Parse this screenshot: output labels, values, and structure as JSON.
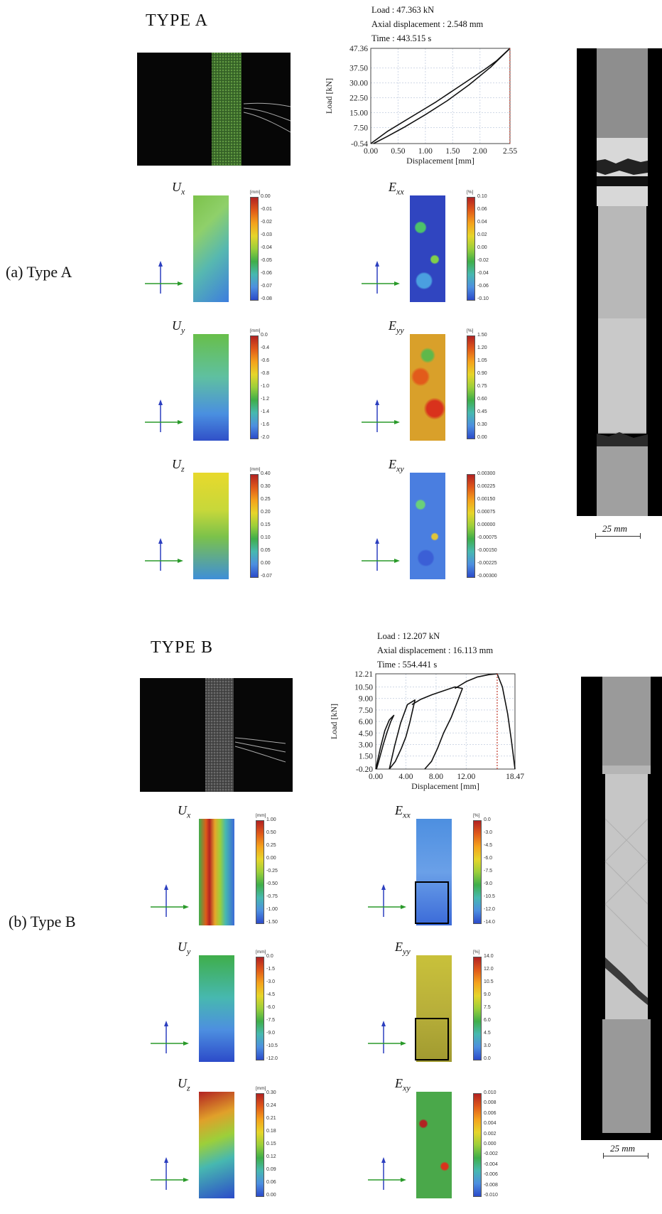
{
  "typeA": {
    "title": "TYPE A",
    "caption": "(a) Type A",
    "info": {
      "load": "Load : 47.363 kN",
      "disp": "Axial displacement : 2.548 mm",
      "time": "Time : 443.515 s"
    },
    "scale": "25 mm",
    "fields": [
      {
        "sym": "U",
        "sub": "x",
        "unit": "[mm]",
        "ticks": [
          "0.00",
          "-0.01",
          "-0.02",
          "-0.03",
          "-0.04",
          "-0.05",
          "-0.06",
          "-0.07",
          "-0.08"
        ]
      },
      {
        "sym": "E",
        "sub": "xx",
        "unit": "[%]",
        "ticks": [
          "0.10",
          "0.06",
          "0.04",
          "0.02",
          "0.00",
          "-0.02",
          "-0.04",
          "-0.06",
          "-0.10"
        ]
      },
      {
        "sym": "U",
        "sub": "y",
        "unit": "[mm]",
        "ticks": [
          "0.0",
          "-0.4",
          "-0.6",
          "-0.8",
          "-1.0",
          "-1.2",
          "-1.4",
          "-1.6",
          "-2.0"
        ]
      },
      {
        "sym": "E",
        "sub": "yy",
        "unit": "[%]",
        "ticks": [
          "1.50",
          "1.20",
          "1.05",
          "0.90",
          "0.75",
          "0.60",
          "0.45",
          "0.30",
          "0.00"
        ]
      },
      {
        "sym": "U",
        "sub": "z",
        "unit": "[mm]",
        "ticks": [
          "0.40",
          "0.30",
          "0.25",
          "0.20",
          "0.15",
          "0.10",
          "0.05",
          "0.00",
          "-0.07"
        ]
      },
      {
        "sym": "E",
        "sub": "xy",
        "unit": "",
        "ticks": [
          "0.00300",
          "0.00225",
          "0.00150",
          "0.00075",
          "0.00000",
          "-0.00075",
          "-0.00150",
          "-0.00225",
          "-0.00300"
        ]
      }
    ]
  },
  "typeB": {
    "title": "TYPE B",
    "caption": "(b) Type B",
    "info": {
      "load": "Load : 12.207 kN",
      "disp": "Axial displacement : 16.113 mm",
      "time": "Time : 554.441 s"
    },
    "scale": "25 mm",
    "fields": [
      {
        "sym": "U",
        "sub": "x",
        "unit": "[mm]",
        "ticks": [
          "1.00",
          "0.50",
          "0.25",
          "0.00",
          "-0.25",
          "-0.50",
          "-0.75",
          "-1.00",
          "-1.50"
        ]
      },
      {
        "sym": "E",
        "sub": "xx",
        "unit": "[%]",
        "ticks": [
          "0.0",
          "-3.0",
          "-4.5",
          "-6.0",
          "-7.5",
          "-9.0",
          "-10.5",
          "-12.0",
          "-14.0"
        ]
      },
      {
        "sym": "U",
        "sub": "y",
        "unit": "[mm]",
        "ticks": [
          "0.0",
          "-1.5",
          "-3.0",
          "-4.5",
          "-6.0",
          "-7.5",
          "-9.0",
          "-10.5",
          "-12.0"
        ]
      },
      {
        "sym": "E",
        "sub": "yy",
        "unit": "[%]",
        "ticks": [
          "14.0",
          "12.0",
          "10.5",
          "9.0",
          "7.5",
          "6.0",
          "4.5",
          "3.0",
          "0.0"
        ]
      },
      {
        "sym": "U",
        "sub": "z",
        "unit": "[mm]",
        "ticks": [
          "0.30",
          "0.24",
          "0.21",
          "0.18",
          "0.15",
          "0.12",
          "0.09",
          "0.06",
          "0.00"
        ]
      },
      {
        "sym": "E",
        "sub": "xy",
        "unit": "",
        "ticks": [
          "0.010",
          "0.008",
          "0.006",
          "0.004",
          "0.002",
          "0.000",
          "-0.002",
          "-0.004",
          "-0.006",
          "-0.008",
          "-0.010"
        ]
      }
    ]
  },
  "chart_data": [
    {
      "type": "line",
      "xlabel": "Displacement [mm]",
      "ylabel": "Load [kN]",
      "xticks": [
        "0.00",
        "0.50",
        "1.00",
        "1.50",
        "2.00",
        "2.55"
      ],
      "yticks": [
        "-0.54",
        "7.50",
        "15.00",
        "22.50",
        "30.00",
        "37.50",
        "47.36"
      ],
      "xlim": [
        0,
        2.55
      ],
      "ylim": [
        -0.54,
        47.36
      ],
      "marker_x": 2.548,
      "series": [
        {
          "x": [
            0.0,
            0.3,
            0.6,
            0.9,
            1.2,
            1.5,
            1.8,
            2.1,
            2.3,
            2.55
          ],
          "y": [
            -0.54,
            5.5,
            10.5,
            15.5,
            20.5,
            26.0,
            31.5,
            37.0,
            41.0,
            47.36
          ]
        },
        {
          "x": [
            2.55,
            2.2,
            1.8,
            1.4,
            1.0,
            0.6,
            0.3,
            0.05
          ],
          "y": [
            47.36,
            38.0,
            29.0,
            21.0,
            14.0,
            7.5,
            3.0,
            -0.54
          ]
        }
      ]
    },
    {
      "type": "line",
      "xlabel": "Displacement [mm]",
      "ylabel": "Load [kN]",
      "xticks": [
        "0.00",
        "4.00",
        "8.00",
        "12.00",
        "18.47"
      ],
      "yticks": [
        "-0.20",
        "1.50",
        "3.00",
        "4.50",
        "6.00",
        "7.50",
        "9.00",
        "10.50",
        "12.21"
      ],
      "xlim": [
        0,
        18.47
      ],
      "ylim": [
        -0.2,
        12.21
      ],
      "marker_x": 16.11,
      "series": [
        {
          "x": [
            0.0,
            0.6,
            1.2,
            1.8,
            2.4,
            2.0,
            1.5,
            1.0,
            0.5,
            0.1
          ],
          "y": [
            -0.2,
            2.5,
            4.8,
            6.2,
            6.8,
            6.0,
            4.6,
            3.0,
            1.2,
            -0.2
          ]
        },
        {
          "x": [
            1.8,
            2.5,
            3.3,
            4.2,
            5.2,
            4.9,
            4.5,
            4.0,
            3.4,
            2.6,
            1.8
          ],
          "y": [
            -0.2,
            2.8,
            5.8,
            8.2,
            8.8,
            7.5,
            5.8,
            4.0,
            2.5,
            0.8,
            -0.2
          ]
        },
        {
          "x": [
            4.8,
            6.0,
            7.5,
            9.0,
            10.5,
            11.5,
            10.8,
            10.0,
            9.0,
            8.2,
            7.4,
            6.5
          ],
          "y": [
            8.2,
            8.9,
            9.5,
            10.0,
            10.5,
            10.3,
            8.5,
            6.5,
            4.5,
            2.5,
            0.8,
            -0.2
          ]
        },
        {
          "x": [
            10.5,
            12.0,
            13.5,
            15.0,
            16.11,
            16.8,
            17.5,
            18.0,
            18.47
          ],
          "y": [
            10.3,
            11.2,
            11.8,
            12.1,
            12.21,
            10.5,
            7.0,
            3.5,
            -0.2
          ]
        }
      ]
    }
  ]
}
